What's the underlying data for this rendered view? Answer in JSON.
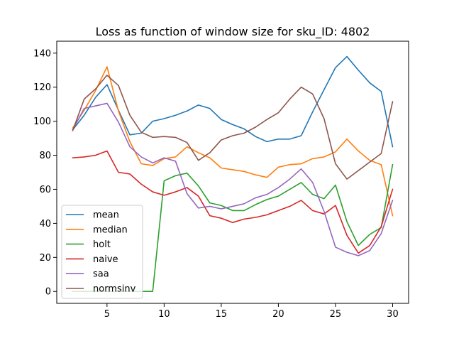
{
  "chart_data": {
    "type": "line",
    "title": "Loss as function of window size for sku_ID: 4802",
    "xlabel": "",
    "ylabel": "",
    "xlim": [
      0.6,
      31.4
    ],
    "ylim": [
      -7,
      147
    ],
    "xticks": [
      5,
      10,
      15,
      20,
      25,
      30
    ],
    "yticks": [
      0,
      20,
      40,
      60,
      80,
      100,
      120,
      140
    ],
    "grid": false,
    "legend_position": "lower-left",
    "x": [
      2,
      3,
      4,
      5,
      6,
      7,
      8,
      9,
      10,
      11,
      12,
      13,
      14,
      15,
      16,
      17,
      18,
      19,
      20,
      21,
      22,
      23,
      24,
      25,
      26,
      27,
      28,
      29,
      30
    ],
    "series": [
      {
        "name": "mean",
        "color": "#1f77b4",
        "values": [
          95,
          103.5,
          114,
          121.5,
          106.5,
          92,
          93,
          100,
          101.5,
          103.5,
          106,
          109.5,
          107.5,
          101,
          98,
          95.5,
          91,
          88,
          89.5,
          89.5,
          91.5,
          105.5,
          118.5,
          131.5,
          138,
          130,
          122.5,
          117.5,
          85
        ]
      },
      {
        "name": "median",
        "color": "#ff7f0e",
        "values": [
          96,
          106.5,
          118,
          132,
          106,
          88,
          75,
          74,
          78,
          79,
          85,
          81.5,
          78.5,
          72.5,
          71.5,
          70.5,
          68.5,
          67,
          73,
          74.5,
          75,
          78,
          79,
          82,
          89.5,
          82.5,
          77,
          74.5,
          44.5
        ]
      },
      {
        "name": "holt",
        "color": "#2ca02c",
        "values": [
          0,
          0,
          0,
          0,
          0,
          0,
          0,
          0,
          65,
          68,
          69.5,
          62,
          52,
          50.5,
          47.5,
          47.5,
          51,
          54,
          56,
          60,
          64,
          57,
          54.5,
          62.5,
          41,
          27,
          33.5,
          37.5,
          74.5
        ]
      },
      {
        "name": "naive",
        "color": "#d62728",
        "values": [
          78.5,
          79,
          80,
          82.5,
          70,
          69,
          63,
          58.5,
          56.5,
          58.5,
          61,
          56,
          44.5,
          43,
          40.5,
          42.5,
          43.5,
          45,
          47.5,
          50,
          53.5,
          47.5,
          45.5,
          50.5,
          33,
          22.5,
          27,
          38,
          60
        ]
      },
      {
        "name": "saa",
        "color": "#9467bd",
        "values": [
          95,
          107.5,
          109,
          110.5,
          99.5,
          85,
          79,
          75.5,
          78.5,
          76.5,
          57.5,
          49,
          50,
          48.5,
          50,
          51.5,
          55,
          57,
          61,
          66,
          72,
          64,
          47,
          26,
          23,
          21,
          24,
          34,
          53.5
        ]
      },
      {
        "name": "normsinv",
        "color": "#8c564b",
        "values": [
          94.5,
          113,
          119,
          127,
          121,
          103.5,
          93.5,
          90.5,
          91,
          90.5,
          87.5,
          77,
          81.5,
          89,
          91.5,
          93,
          96.5,
          101,
          105,
          113,
          120,
          116,
          101.5,
          75,
          66,
          71,
          76,
          81,
          111.5
        ]
      }
    ]
  }
}
